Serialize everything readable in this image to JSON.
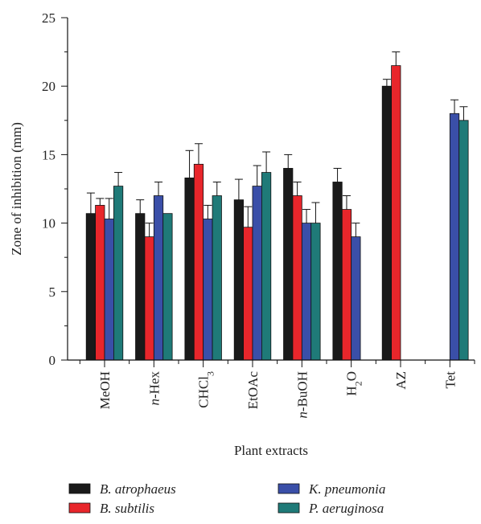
{
  "chart_data": {
    "type": "bar",
    "xlabel": "Plant extracts",
    "ylabel": "Zone of inhibition (mm)",
    "ylim": [
      0,
      25
    ],
    "yticks": [
      0,
      5,
      10,
      15,
      20,
      25
    ],
    "grid": false,
    "legend_position": "bottom",
    "categories": [
      {
        "label": "MeOH",
        "parts": [
          {
            "t": "MeOH"
          }
        ]
      },
      {
        "label": "n-Hex",
        "parts": [
          {
            "t": "n",
            "italic": true
          },
          {
            "t": "-Hex"
          }
        ]
      },
      {
        "label": "CHCl3",
        "parts": [
          {
            "t": "CHCl"
          },
          {
            "t": "3",
            "sub": true
          }
        ]
      },
      {
        "label": "EtOAc",
        "parts": [
          {
            "t": "EtOAc"
          }
        ]
      },
      {
        "label": "n-BuOH",
        "parts": [
          {
            "t": "n",
            "italic": true
          },
          {
            "t": "-BuOH"
          }
        ]
      },
      {
        "label": "H2O",
        "parts": [
          {
            "t": "H"
          },
          {
            "t": "2",
            "sub": true
          },
          {
            "t": "O"
          }
        ]
      },
      {
        "label": "AZ",
        "parts": [
          {
            "t": "AZ"
          }
        ]
      },
      {
        "label": "Tet",
        "parts": [
          {
            "t": "Tet"
          }
        ]
      }
    ],
    "series": [
      {
        "name": "B. atrophaeus",
        "color": "#1a1a1a",
        "values": [
          10.7,
          10.7,
          13.3,
          11.7,
          14.0,
          13.0,
          20.0,
          null
        ],
        "errors": [
          1.5,
          1.0,
          2.0,
          1.5,
          1.0,
          1.0,
          0.5,
          null
        ]
      },
      {
        "name": "B. subtilis",
        "color": "#e8262b",
        "values": [
          11.3,
          9.0,
          14.3,
          9.7,
          12.0,
          11.0,
          21.5,
          null
        ],
        "errors": [
          0.5,
          1.0,
          1.5,
          1.5,
          1.0,
          1.0,
          1.0,
          null
        ]
      },
      {
        "name": "K. pneumonia",
        "color": "#3a4fa8",
        "values": [
          10.3,
          12.0,
          10.3,
          12.7,
          10.0,
          9.0,
          null,
          18.0
        ],
        "errors": [
          1.5,
          1.0,
          1.0,
          1.5,
          1.0,
          1.0,
          null,
          1.0
        ]
      },
      {
        "name": "P. aeruginosa",
        "color": "#1f7a78",
        "values": [
          12.7,
          10.7,
          12.0,
          13.7,
          10.0,
          null,
          null,
          17.5
        ],
        "errors": [
          1.0,
          null,
          1.0,
          1.5,
          1.5,
          null,
          null,
          1.0
        ]
      }
    ]
  }
}
